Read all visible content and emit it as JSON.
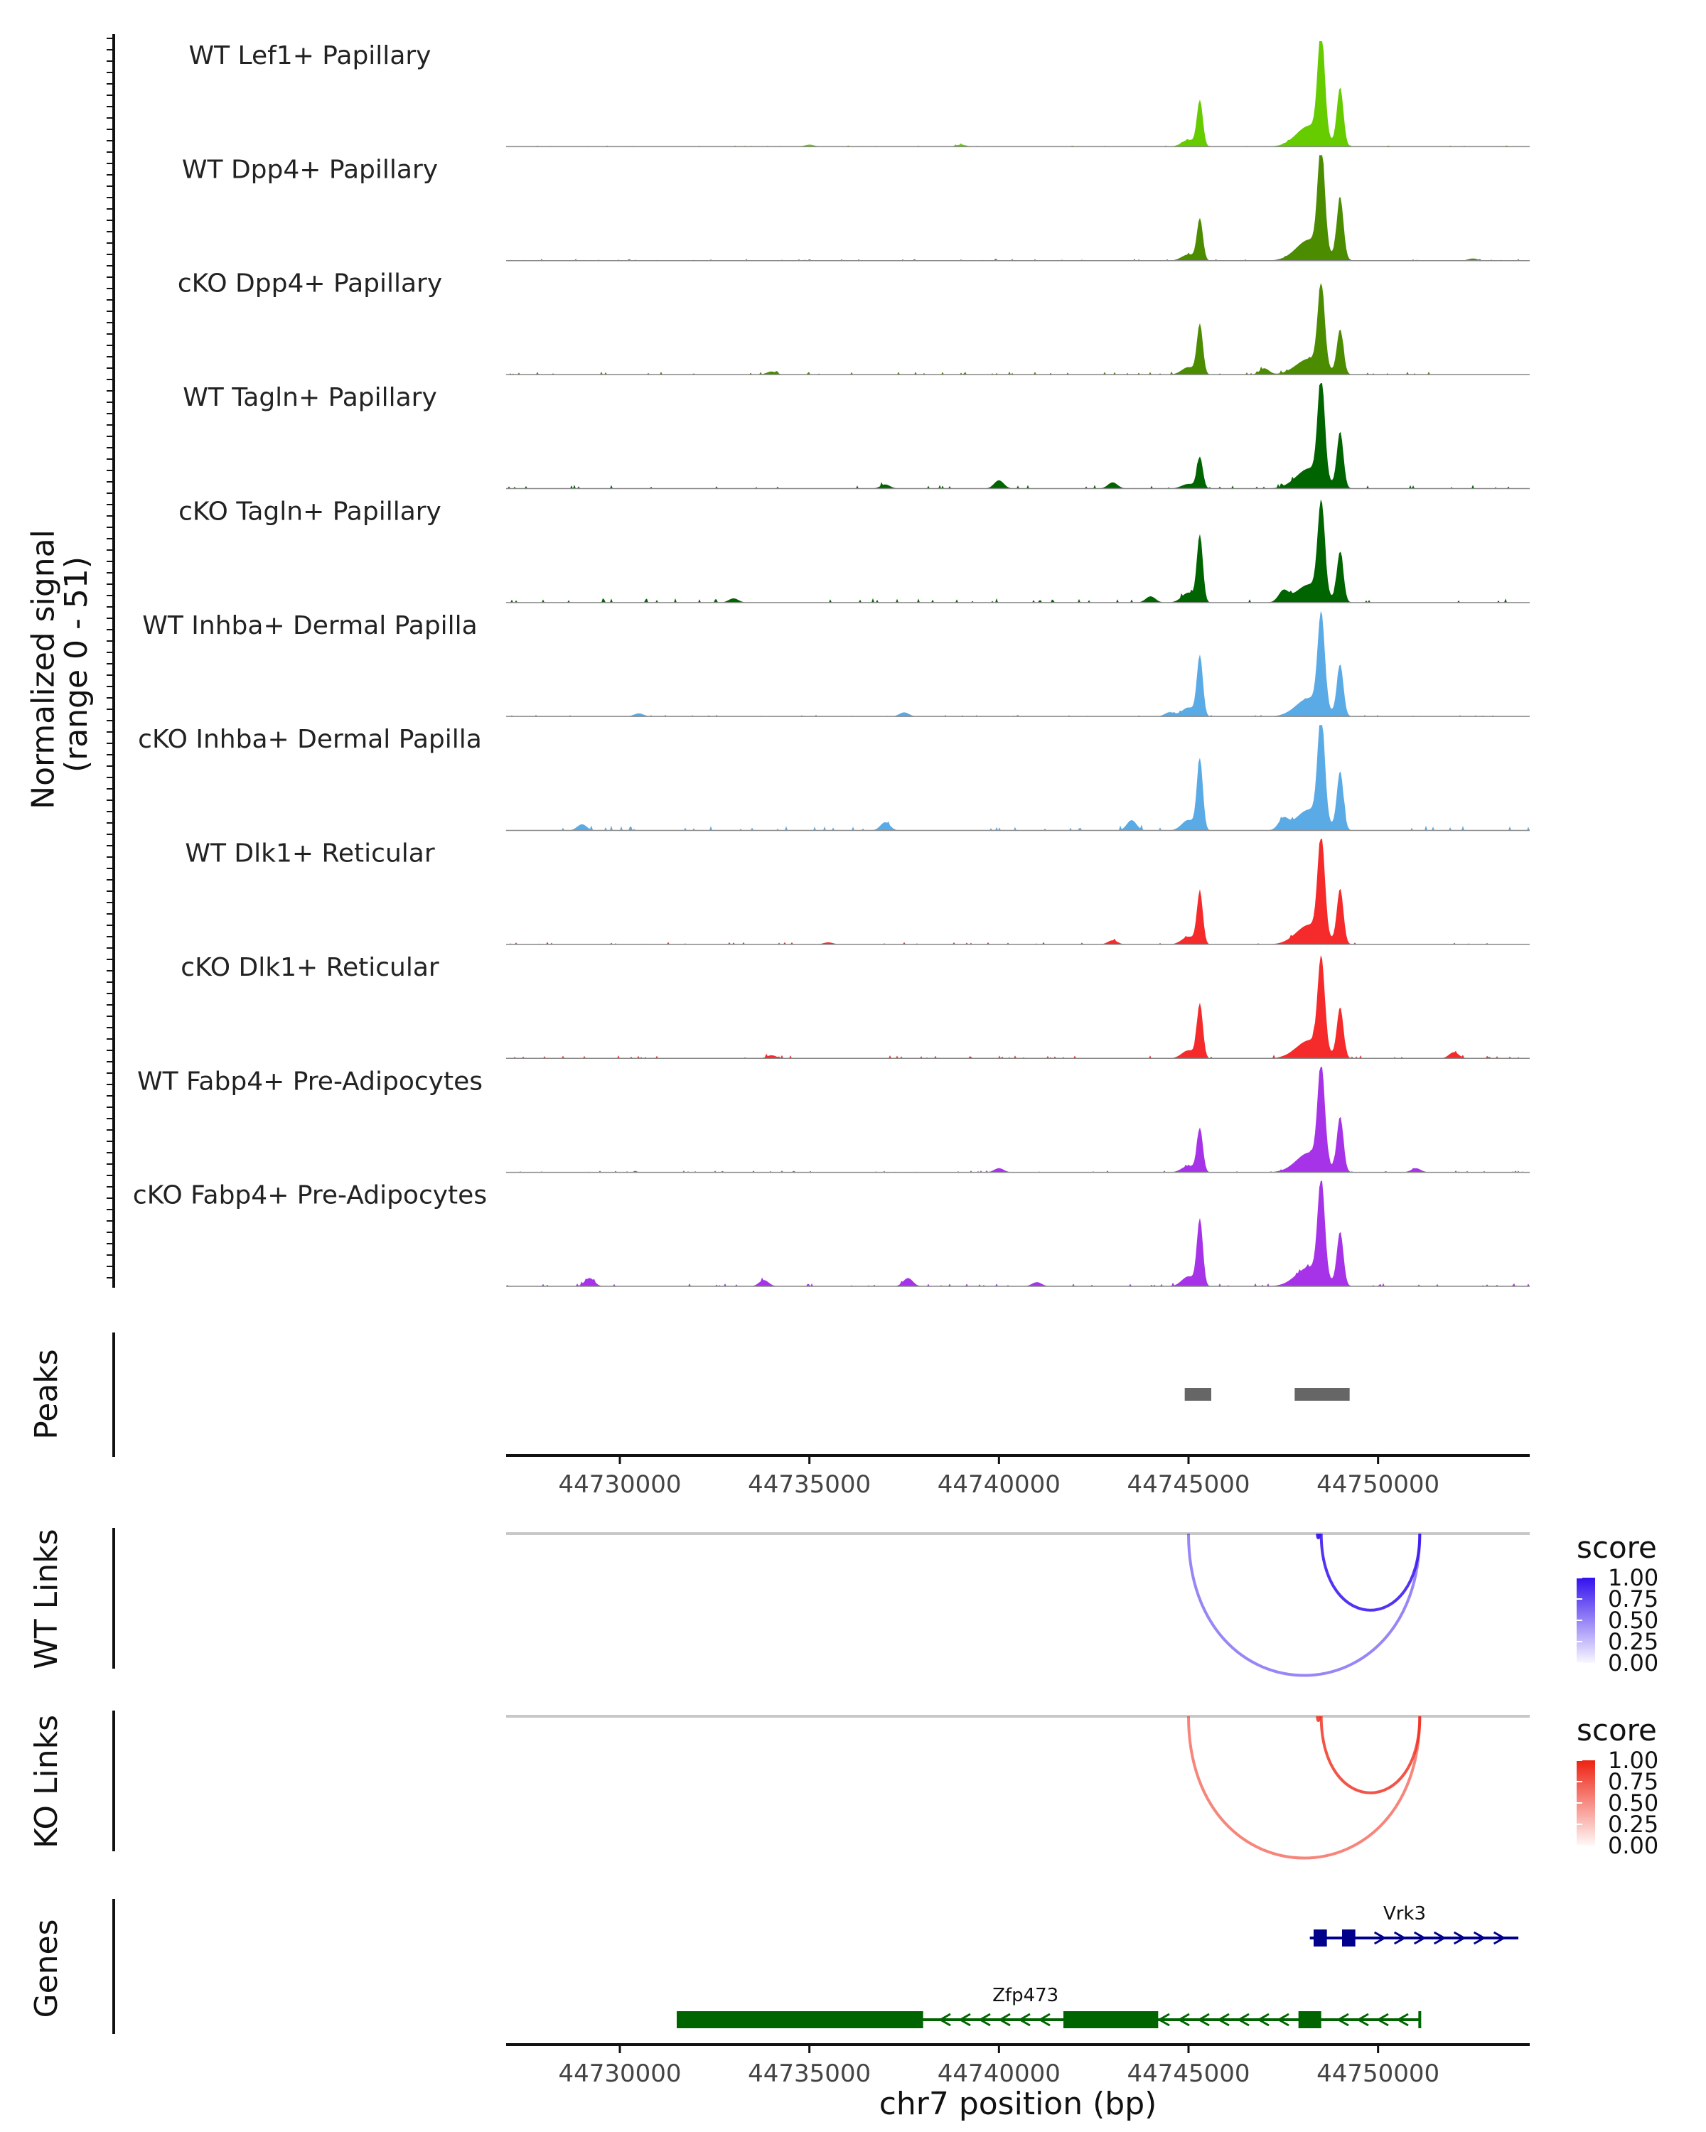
{
  "chart_data": {
    "type": "genome-browser-coverage",
    "xlabel": "chr7 position (bp)",
    "xlim": [
      44727000,
      44754000
    ],
    "x_ticks": [
      44730000,
      44735000,
      44740000,
      44745000,
      44750000
    ],
    "x_tick_labels": [
      "44730000",
      "44735000",
      "44740000",
      "44745000",
      "44750000"
    ],
    "coverage": {
      "ylabel": "Normalized signal\n(range 0 - 51)",
      "ylim": [
        0,
        51
      ],
      "peak_centers": [
        44745300,
        44748500
      ],
      "tracks": [
        {
          "name": "WT Lef1+ Papillary",
          "color": "#66cc00",
          "peak1": 22,
          "peak2": 51,
          "noise": 0.4,
          "background": [
            [
              44735000,
              1
            ],
            [
              44739000,
              1
            ]
          ]
        },
        {
          "name": "WT Dpp4+ Papillary",
          "color": "#4c8c00",
          "peak1": 20,
          "peak2": 51,
          "noise": 0.6,
          "background": [
            [
              44749000,
              2
            ],
            [
              44752500,
              1
            ]
          ]
        },
        {
          "name": "cKO Dpp4+ Papillary",
          "color": "#4c8c00",
          "peak1": 24,
          "peak2": 39,
          "noise": 1,
          "background": [
            [
              44734000,
              1.5
            ],
            [
              44747000,
              3
            ]
          ]
        },
        {
          "name": "WT Tagln+ Papillary",
          "color": "#006400",
          "peak1": 15,
          "peak2": 49,
          "noise": 1.2,
          "background": [
            [
              44737000,
              2
            ],
            [
              44740000,
              4
            ],
            [
              44743000,
              3
            ]
          ]
        },
        {
          "name": "cKO Tagln+ Papillary",
          "color": "#006400",
          "peak1": 32,
          "peak2": 44,
          "noise": 1.4,
          "background": [
            [
              44733000,
              2
            ],
            [
              44744000,
              3
            ],
            [
              44747500,
              5
            ]
          ]
        },
        {
          "name": "WT Inhba+ Dermal Papilla",
          "color": "#5aaae6",
          "peak1": 29,
          "peak2": 45,
          "noise": 0.6,
          "background": [
            [
              44730500,
              1.5
            ],
            [
              44737500,
              2
            ],
            [
              44744500,
              2
            ]
          ]
        },
        {
          "name": "cKO Inhba+ Dermal Papilla",
          "color": "#5aaae6",
          "peak1": 34,
          "peak2": 51,
          "noise": 1.6,
          "background": [
            [
              44729000,
              3
            ],
            [
              44737000,
              4
            ],
            [
              44743500,
              5
            ],
            [
              44747500,
              5
            ]
          ]
        },
        {
          "name": "WT Dlk1+ Reticular",
          "color": "#f52a2a",
          "peak1": 25,
          "peak2": 48,
          "noise": 0.8,
          "background": [
            [
              44735500,
              1
            ],
            [
              44743000,
              2
            ]
          ]
        },
        {
          "name": "cKO Dlk1+ Reticular",
          "color": "#f52a2a",
          "peak1": 26,
          "peak2": 44,
          "noise": 1,
          "background": [
            [
              44734000,
              1.5
            ],
            [
              44752000,
              3
            ]
          ]
        },
        {
          "name": "WT Fabp4+ Pre-Adipocytes",
          "color": "#a733e8",
          "peak1": 21,
          "peak2": 48,
          "noise": 0.6,
          "background": [
            [
              44740000,
              2
            ],
            [
              44751000,
              2
            ]
          ]
        },
        {
          "name": "cKO Fabp4+ Pre-Adipocytes",
          "color": "#a733e8",
          "peak1": 32,
          "peak2": 47,
          "noise": 1,
          "background": [
            [
              44729200,
              4
            ],
            [
              44733800,
              3
            ],
            [
              44737600,
              4
            ],
            [
              44741000,
              2
            ]
          ]
        }
      ]
    },
    "peaks": {
      "label": "Peaks",
      "regions": [
        [
          44744900,
          44745600
        ],
        [
          44747800,
          44749250
        ]
      ],
      "color": "#666666"
    },
    "links": [
      {
        "label": "WT Links",
        "legend_title": "score",
        "scale_color": "#3311ee",
        "arcs": [
          {
            "start": 44745000,
            "end": 44751100,
            "score": 0.35
          },
          {
            "start": 44748400,
            "end": 44748450,
            "score": 0.9
          },
          {
            "start": 44748500,
            "end": 44751100,
            "score": 0.8
          }
        ]
      },
      {
        "label": "KO Links",
        "legend_title": "score",
        "scale_color": "#ee2211",
        "arcs": [
          {
            "start": 44745000,
            "end": 44751100,
            "score": 0.4
          },
          {
            "start": 44748400,
            "end": 44748450,
            "score": 0.75
          },
          {
            "start": 44748500,
            "end": 44751100,
            "score": 0.7
          }
        ]
      }
    ],
    "legend_ticks": [
      "1.00",
      "0.75",
      "0.50",
      "0.25",
      "0.00"
    ],
    "genes": {
      "label": "Genes",
      "items": [
        {
          "name": "Vrk3",
          "strand": "+",
          "start": 44748200,
          "end": 44753700,
          "color": "#00008b",
          "exons": [
            [
              44748300,
              44748650
            ],
            [
              44749050,
              44749400
            ]
          ]
        },
        {
          "name": "Zfp473",
          "strand": "-",
          "start": 44731500,
          "end": 44751100,
          "color": "#006400",
          "exons": [
            [
              44731500,
              44738000
            ],
            [
              44741700,
              44744200
            ],
            [
              44747900,
              44748500
            ]
          ]
        }
      ]
    }
  }
}
